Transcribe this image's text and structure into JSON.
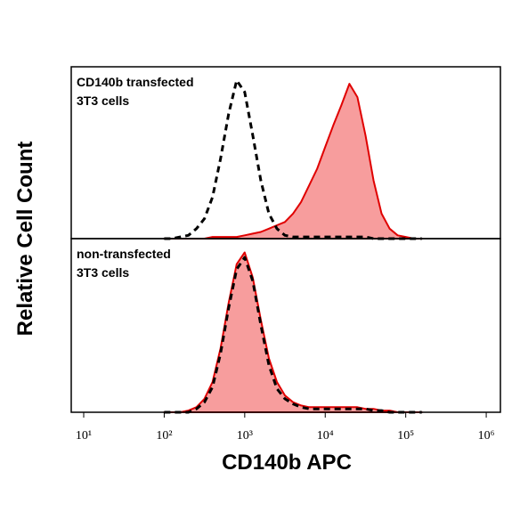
{
  "x_label": "CD140b APC",
  "y_label": "Relative Cell Count",
  "chart_data": [
    {
      "type": "area",
      "annotation": [
        "CD140b transfected",
        "3T3 cells"
      ],
      "xscale": "log",
      "xlim": [
        7,
        1500000
      ],
      "ylim": [
        0,
        100
      ],
      "x": [
        100,
        126,
        158,
        200,
        251,
        316,
        398,
        501,
        631,
        794,
        1000,
        1259,
        1585,
        1995,
        2512,
        3162,
        3981,
        5012,
        6310,
        7943,
        10000,
        12589,
        15849,
        19953,
        25119,
        31623,
        39811,
        50119,
        63096,
        79433,
        100000,
        125893,
        158489
      ],
      "series": [
        {
          "color": "#e00000",
          "fill": "#f79d9d",
          "style": "filled",
          "values": [
            0,
            0,
            0,
            0,
            0,
            0,
            1,
            1,
            1,
            1,
            2,
            3,
            4,
            6,
            8,
            10,
            15,
            22,
            32,
            42,
            55,
            68,
            80,
            93,
            85,
            62,
            35,
            15,
            6,
            2,
            1,
            0,
            0
          ]
        },
        {
          "color": "#000000",
          "style": "dashed",
          "values": [
            0,
            0,
            1,
            2,
            6,
            12,
            25,
            48,
            75,
            95,
            88,
            62,
            35,
            15,
            6,
            2,
            1,
            1,
            1,
            1,
            1,
            1,
            1,
            1,
            1,
            1,
            0,
            0,
            0,
            0,
            0,
            0,
            0
          ]
        }
      ]
    },
    {
      "type": "area",
      "annotation": [
        "non-transfected",
        "3T3 cells"
      ],
      "xscale": "log",
      "xlim": [
        7,
        1500000
      ],
      "ylim": [
        0,
        100
      ],
      "xticks": [
        {
          "value": 10,
          "label": "10¹"
        },
        {
          "value": 100,
          "label": "10²"
        },
        {
          "value": 1000,
          "label": "10³"
        },
        {
          "value": 10000,
          "label": "10⁴"
        },
        {
          "value": 100000,
          "label": "10⁵"
        },
        {
          "value": 1000000,
          "label": "10⁶"
        }
      ],
      "x": [
        100,
        126,
        158,
        200,
        251,
        316,
        398,
        501,
        631,
        794,
        1000,
        1259,
        1585,
        1995,
        2512,
        3162,
        3981,
        5012,
        6310,
        7943,
        10000,
        12589,
        15849,
        19953,
        25119,
        31623,
        39811,
        50119,
        63096,
        79433,
        100000,
        125893,
        158489
      ],
      "series": [
        {
          "color": "#e00000",
          "fill": "#f79d9d",
          "style": "filled",
          "values": [
            0,
            0,
            0,
            1,
            3,
            8,
            18,
            38,
            65,
            88,
            95,
            80,
            55,
            32,
            18,
            10,
            6,
            4,
            3,
            3,
            3,
            3,
            3,
            3,
            3,
            2,
            2,
            1,
            1,
            0,
            0,
            0,
            0
          ]
        },
        {
          "color": "#000000",
          "style": "dashed",
          "values": [
            0,
            0,
            0,
            0,
            2,
            6,
            15,
            35,
            62,
            85,
            92,
            78,
            52,
            28,
            14,
            8,
            5,
            3,
            2,
            2,
            2,
            2,
            2,
            2,
            2,
            2,
            1,
            1,
            0,
            0,
            0,
            0,
            0
          ]
        }
      ]
    }
  ]
}
